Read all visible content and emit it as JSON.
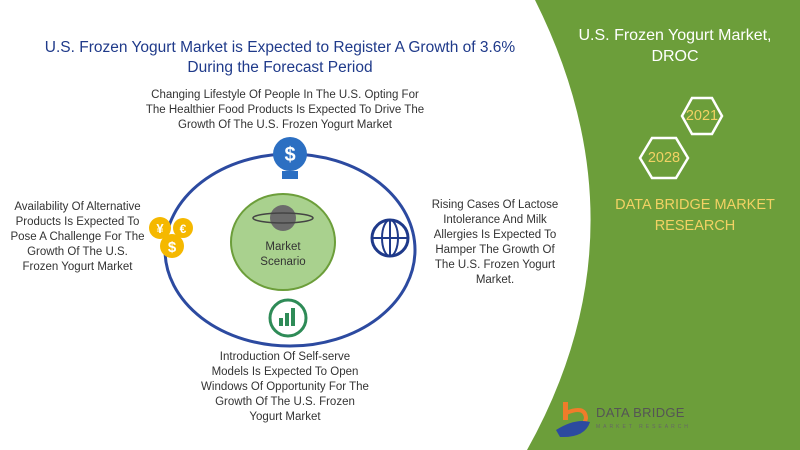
{
  "title": "U.S. Frozen Yogurt Market is Expected to Register A Growth of 3.6% During the Forecast Period",
  "center": {
    "label_line1": "Market",
    "label_line2": "Scenario"
  },
  "drivers": {
    "top": "Changing Lifestyle Of People In The U.S. Opting For The Healthier Food Products Is Expected To Drive The Growth Of The U.S. Frozen Yogurt Market",
    "right": "Rising Cases Of Lactose Intolerance And Milk Allergies Is Expected To Hamper The Growth Of The U.S. Frozen Yogurt Market.",
    "bottom": "Introduction Of  Self-serve Models Is Expected To Open Windows Of Opportunity For The Growth Of The U.S. Frozen Yogurt Market",
    "left": "Availability Of Alternative Products Is Expected To Pose A Challenge For The Growth Of The U.S. Frozen Yogurt Market"
  },
  "panel": {
    "heading": "U.S. Frozen Yogurt Market, DROC",
    "year_a": "2021",
    "year_b": "2028",
    "brand": "DATA BRIDGE MARKET RESEARCH"
  },
  "logo": {
    "name": "DATA BRIDGE",
    "tagline": "MARKET RESEARCH"
  },
  "colors": {
    "green": "#6c9e3a",
    "gold": "#f2d264",
    "blue": "#1f3a8a",
    "ring": "#2c4aa0"
  },
  "icons": {
    "top": "lightbulb-dollar-icon",
    "right": "globe-hand-icon",
    "bottom": "growth-chart-icon",
    "left": "currency-coins-icon"
  }
}
